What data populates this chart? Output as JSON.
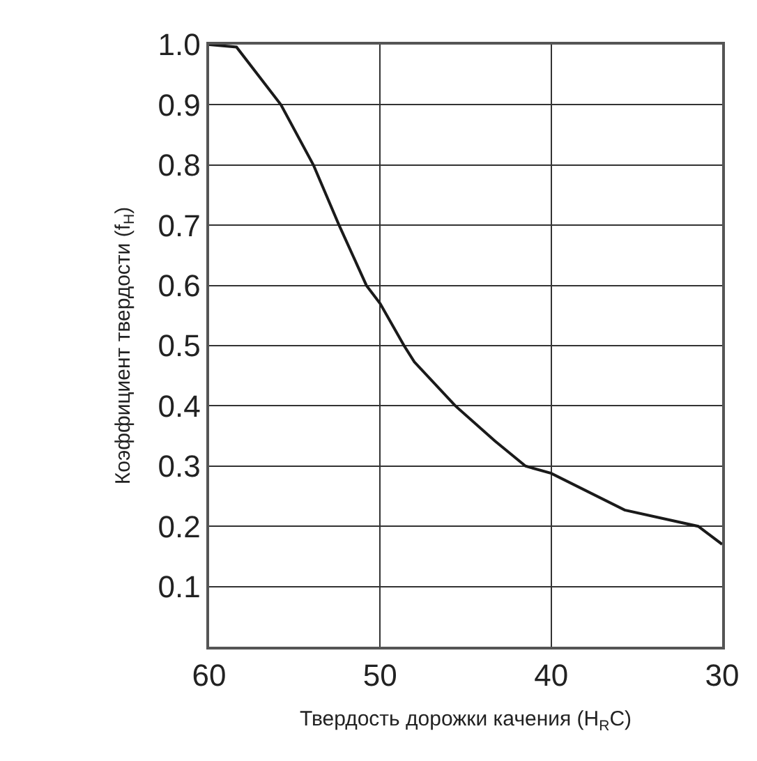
{
  "chart_data": {
    "type": "line",
    "xlabel": "Твердость дорожки качения (H$_{R}$C)",
    "ylabel": "Коэффициент твердости (f$_{H}$)",
    "x": [
      60,
      58.4,
      55.8,
      53.9,
      52.4,
      50.8,
      50,
      48.6,
      48,
      45.6,
      43.3,
      41.5,
      40,
      35.7,
      31.4,
      30
    ],
    "series": [
      {
        "color": "#1a1a1a",
        "values": [
          1.0,
          0.996,
          0.9,
          0.8,
          0.7,
          0.6,
          0.57,
          0.5,
          0.473,
          0.4,
          0.342,
          0.3,
          0.288,
          0.227,
          0.2,
          0.17
        ]
      }
    ],
    "xlim": [
      60,
      30
    ],
    "xticks": [
      60,
      50,
      40,
      30
    ],
    "ylim": [
      0,
      1.0
    ],
    "yticks": [
      {
        "value": 0.1,
        "label": "0.1"
      },
      {
        "value": 0.2,
        "label": "0.2"
      },
      {
        "value": 0.3,
        "label": "0.3"
      },
      {
        "value": 0.4,
        "label": "0.4"
      },
      {
        "value": 0.5,
        "label": "0.5"
      },
      {
        "value": 0.6,
        "label": "0.6"
      },
      {
        "value": 0.7,
        "label": "0.7"
      },
      {
        "value": 0.8,
        "label": "0.8"
      },
      {
        "value": 0.9,
        "label": "0.9"
      },
      {
        "value": 1.0,
        "label": "1.0"
      }
    ],
    "grid": true,
    "legend": false,
    "marker": "none",
    "line_style": "solid"
  }
}
